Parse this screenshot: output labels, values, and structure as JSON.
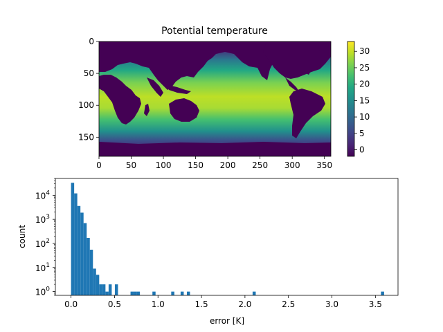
{
  "chart_data": [
    {
      "type": "heatmap",
      "title": "Potential temperature",
      "xlabel": "",
      "ylabel": "",
      "xlim": [
        0,
        360
      ],
      "ylim": [
        180,
        0
      ],
      "x_ticks": [
        "0",
        "50",
        "100",
        "150",
        "200",
        "250",
        "300",
        "350"
      ],
      "y_ticks": [
        "0",
        "50",
        "100",
        "150"
      ],
      "colorbar": {
        "range": [
          -2,
          33
        ],
        "ticks": [
          "0",
          "5",
          "10",
          "15",
          "20",
          "25",
          "30"
        ],
        "colormap": "viridis"
      },
      "land_color": "#440154"
    },
    {
      "type": "bar",
      "subtype": "histogram",
      "title": "",
      "xlabel": "error [K]",
      "ylabel": "count",
      "yscale": "log",
      "xlim": [
        -0.18,
        3.76
      ],
      "ylim": [
        0.7,
        50000
      ],
      "x_ticks": [
        "0.0",
        "0.5",
        "1.0",
        "1.5",
        "2.0",
        "2.5",
        "3.0",
        "3.5"
      ],
      "y_ticks": [
        "10^0",
        "10^1",
        "10^2",
        "10^3",
        "10^4"
      ],
      "bar_color": "#1f77b4",
      "bin_width": 0.036,
      "bins": [
        {
          "x": 0.0,
          "count": 33000
        },
        {
          "x": 0.036,
          "count": 12000
        },
        {
          "x": 0.072,
          "count": 3600
        },
        {
          "x": 0.108,
          "count": 1900
        },
        {
          "x": 0.144,
          "count": 700
        },
        {
          "x": 0.18,
          "count": 170
        },
        {
          "x": 0.216,
          "count": 55
        },
        {
          "x": 0.252,
          "count": 9
        },
        {
          "x": 0.288,
          "count": 5
        },
        {
          "x": 0.324,
          "count": 2
        },
        {
          "x": 0.36,
          "count": 2
        },
        {
          "x": 0.396,
          "count": 1
        },
        {
          "x": 0.432,
          "count": 2
        },
        {
          "x": 0.504,
          "count": 2
        },
        {
          "x": 0.684,
          "count": 1
        },
        {
          "x": 0.72,
          "count": 1
        },
        {
          "x": 0.756,
          "count": 1
        },
        {
          "x": 0.936,
          "count": 1
        },
        {
          "x": 1.152,
          "count": 1
        },
        {
          "x": 1.26,
          "count": 1
        },
        {
          "x": 1.332,
          "count": 1
        },
        {
          "x": 2.088,
          "count": 1
        },
        {
          "x": 3.564,
          "count": 1
        }
      ]
    }
  ]
}
